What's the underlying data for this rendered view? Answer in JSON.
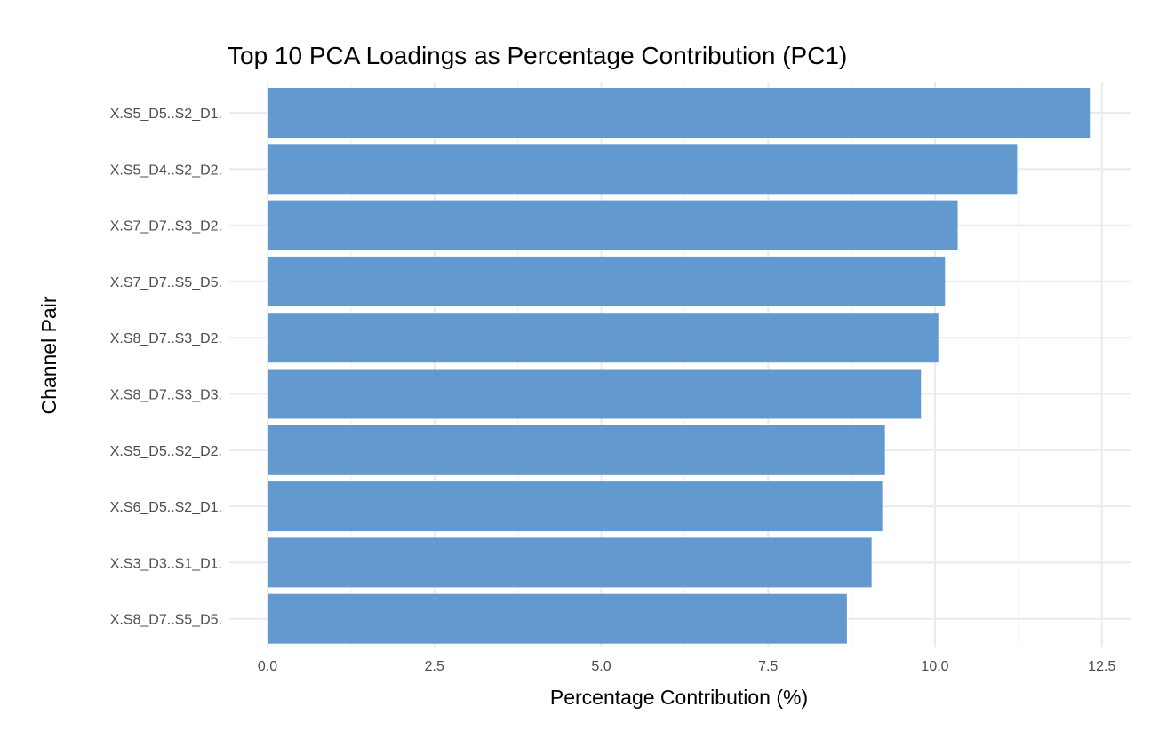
{
  "chart_data": {
    "type": "bar",
    "orientation": "horizontal",
    "title": "Top 10 PCA Loadings as Percentage Contribution (PC1)",
    "xlabel": "Percentage Contribution (%)",
    "ylabel": "Channel Pair",
    "categories": [
      "X.S5_D5..S2_D1.",
      "X.S5_D4..S2_D2.",
      "X.S7_D7..S3_D2.",
      "X.S7_D7..S5_D5.",
      "X.S8_D7..S3_D2.",
      "X.S8_D7..S3_D3.",
      "X.S5_D5..S2_D2.",
      "X.S6_D5..S2_D1.",
      "X.S3_D3..S1_D1.",
      "X.S8_D7..S5_D5."
    ],
    "values": [
      12.32,
      11.23,
      10.34,
      10.15,
      10.05,
      9.79,
      9.25,
      9.21,
      9.05,
      8.68
    ],
    "xlim": [
      0,
      12.95
    ],
    "x_ticks": [
      0,
      2.5,
      5,
      7.5,
      10,
      12.5
    ],
    "x_tick_labels": [
      "0.0",
      "2.5",
      "5.0",
      "7.5",
      "10.0",
      "12.5"
    ],
    "bar_color": "#6299cf",
    "grid": true,
    "legend": "none"
  }
}
